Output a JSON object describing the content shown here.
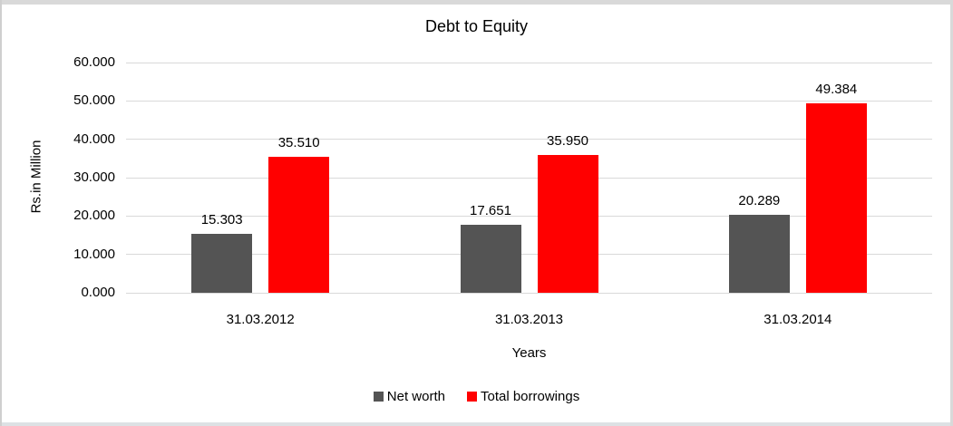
{
  "chart_data": {
    "type": "bar",
    "title": "Debt to Equity",
    "xlabel": "Years",
    "ylabel": "Rs.in Million",
    "categories": [
      "31.03.2012",
      "31.03.2013",
      "31.03.2014"
    ],
    "series": [
      {
        "name": "Net worth",
        "color": "#545454",
        "values": [
          15.303,
          17.651,
          20.289
        ]
      },
      {
        "name": "Total borrowings",
        "color": "#ff0000",
        "values": [
          35.51,
          35.95,
          49.384
        ]
      }
    ],
    "data_labels": [
      [
        "15.303",
        "17.651",
        "20.289"
      ],
      [
        "35.510",
        "35.950",
        "49.384"
      ]
    ],
    "ylim": [
      0,
      60
    ],
    "ytick_step": 10,
    "ytick_labels": [
      "0.000",
      "10.000",
      "20.000",
      "30.000",
      "40.000",
      "50.000",
      "60.000"
    ],
    "grid": true,
    "gridline_color": "#d9d9d9",
    "legend_position": "bottom"
  }
}
